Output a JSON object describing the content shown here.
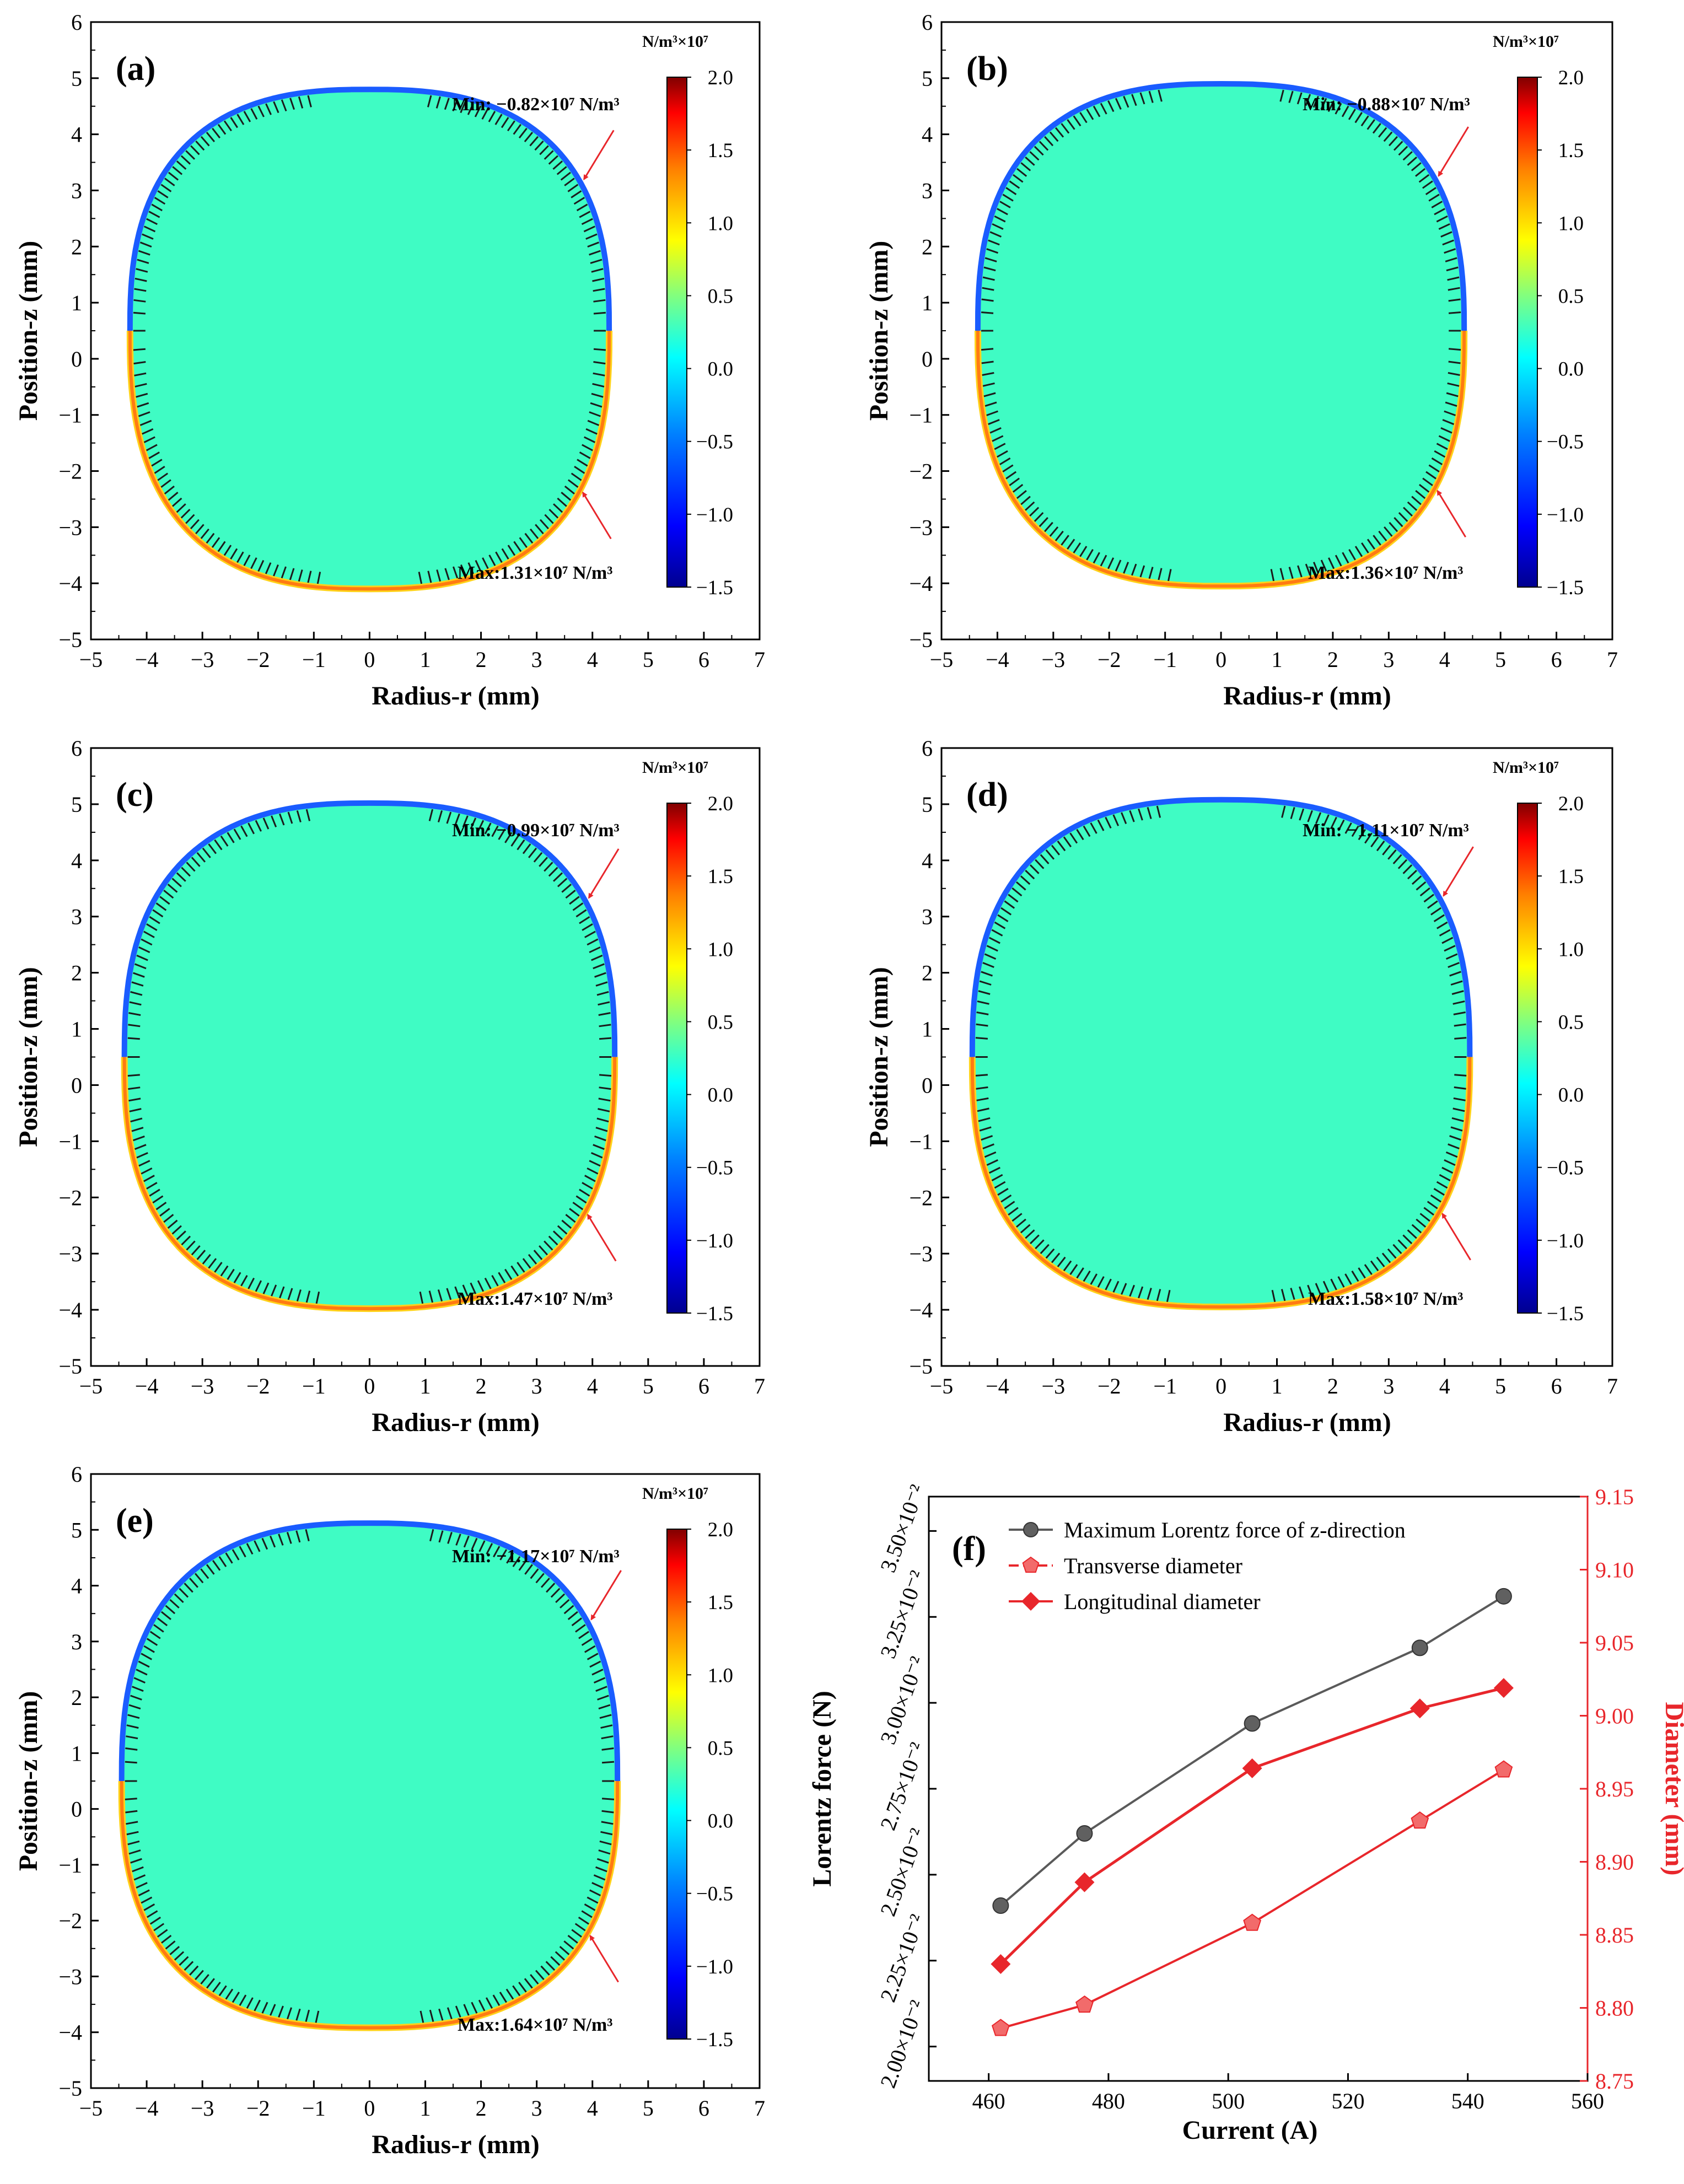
{
  "colors": {
    "fill": "#3ffcc4",
    "neg_edge": "#1a5cff",
    "pos_edge": "#ff7a12",
    "pos_edge2": "#ffd21a",
    "arrow": "#e8262b",
    "gray_series": "#5a5a5a",
    "red_series": "#e8262b",
    "red_axis": "#e8262b"
  },
  "chart_data": [
    {
      "type": "heatmap",
      "panel": "(a)",
      "xlabel": "Radius-r (mm)",
      "ylabel": "Position-z (mm)",
      "xlim": [
        -5,
        7
      ],
      "ylim": [
        -5,
        6
      ],
      "xticks": [
        "−5",
        "−4",
        "−3",
        "−2",
        "−1",
        "0",
        "1",
        "2",
        "3",
        "4",
        "5",
        "6",
        "7"
      ],
      "yticks": [
        "−5",
        "−4",
        "−3",
        "−2",
        "−1",
        "0",
        "1",
        "2",
        "3",
        "4",
        "5",
        "6"
      ],
      "droplet": {
        "top": 4.8,
        "bottom": -4.1,
        "half_width": 4.3,
        "widest_z": 0.5
      },
      "min_label": "Min: −0.82×10⁷ N/m³",
      "max_label": "Max:1.31×10⁷ N/m³",
      "colorbar": {
        "title": "N/m³×10⁷",
        "range": [
          -1.5,
          2.0
        ],
        "ticks": [
          "2.0",
          "1.5",
          "1.0",
          "0.5",
          "0.0",
          "−0.5",
          "−1.0",
          "−1.5"
        ]
      }
    },
    {
      "type": "heatmap",
      "panel": "(b)",
      "xlabel": "Radius-r (mm)",
      "ylabel": "Position-z (mm)",
      "xlim": [
        -5,
        7
      ],
      "ylim": [
        -5,
        6
      ],
      "xticks": [
        "−5",
        "−4",
        "−3",
        "−2",
        "−1",
        "0",
        "1",
        "2",
        "3",
        "4",
        "5",
        "6",
        "7"
      ],
      "yticks": [
        "−5",
        "−4",
        "−3",
        "−2",
        "−1",
        "0",
        "1",
        "2",
        "3",
        "4",
        "5",
        "6"
      ],
      "droplet": {
        "top": 4.9,
        "bottom": -4.05,
        "half_width": 4.35,
        "widest_z": 0.5
      },
      "min_label": "Min: −0.88×10⁷ N/m³",
      "max_label": "Max:1.36×10⁷ N/m³",
      "colorbar": {
        "title": "N/m³×10⁷",
        "range": [
          -1.5,
          2.0
        ],
        "ticks": [
          "2.0",
          "1.5",
          "1.0",
          "0.5",
          "0.0",
          "−0.5",
          "−1.0",
          "−1.5"
        ]
      }
    },
    {
      "type": "heatmap",
      "panel": "(c)",
      "xlabel": "Radius-r (mm)",
      "ylabel": "Position-z (mm)",
      "xlim": [
        -5,
        7
      ],
      "ylim": [
        -5,
        6
      ],
      "xticks": [
        "−5",
        "−4",
        "−3",
        "−2",
        "−1",
        "0",
        "1",
        "2",
        "3",
        "4",
        "5",
        "6",
        "7"
      ],
      "yticks": [
        "−5",
        "−4",
        "−3",
        "−2",
        "−1",
        "0",
        "1",
        "2",
        "3",
        "4",
        "5",
        "6"
      ],
      "droplet": {
        "top": 5.02,
        "bottom": -3.98,
        "half_width": 4.4,
        "widest_z": 0.5
      },
      "min_label": "Min: −0.99×10⁷ N/m³",
      "max_label": "Max:1.47×10⁷ N/m³",
      "colorbar": {
        "title": "N/m³×10⁷",
        "range": [
          -1.5,
          2.0
        ],
        "ticks": [
          "2.0",
          "1.5",
          "1.0",
          "0.5",
          "0.0",
          "−0.5",
          "−1.0",
          "−1.5"
        ]
      }
    },
    {
      "type": "heatmap",
      "panel": "(d)",
      "xlabel": "Radius-r (mm)",
      "ylabel": "Position-z (mm)",
      "xlim": [
        -5,
        7
      ],
      "ylim": [
        -5,
        6
      ],
      "xticks": [
        "−5",
        "−4",
        "−3",
        "−2",
        "−1",
        "0",
        "1",
        "2",
        "3",
        "4",
        "5",
        "6",
        "7"
      ],
      "yticks": [
        "−5",
        "−4",
        "−3",
        "−2",
        "−1",
        "0",
        "1",
        "2",
        "3",
        "4",
        "5",
        "6"
      ],
      "droplet": {
        "top": 5.08,
        "bottom": -3.95,
        "half_width": 4.45,
        "widest_z": 0.5
      },
      "min_label": "Min: −1.11×10⁷ N/m³",
      "max_label": "Max:1.58×10⁷ N/m³",
      "colorbar": {
        "title": "N/m³×10⁷",
        "range": [
          -1.5,
          2.0
        ],
        "ticks": [
          "2.0",
          "1.5",
          "1.0",
          "0.5",
          "0.0",
          "−0.5",
          "−1.0",
          "−1.5"
        ]
      }
    },
    {
      "type": "heatmap",
      "panel": "(e)",
      "xlabel": "Radius-r (mm)",
      "ylabel": "Position-z (mm)",
      "xlim": [
        -5,
        7
      ],
      "ylim": [
        -5,
        6
      ],
      "xticks": [
        "−5",
        "−4",
        "−3",
        "−2",
        "−1",
        "0",
        "1",
        "2",
        "3",
        "4",
        "5",
        "6",
        "7"
      ],
      "yticks": [
        "−5",
        "−4",
        "−3",
        "−2",
        "−1",
        "0",
        "1",
        "2",
        "3",
        "4",
        "5",
        "6"
      ],
      "droplet": {
        "top": 5.12,
        "bottom": -3.92,
        "half_width": 4.45,
        "widest_z": 0.5
      },
      "min_label": "Min: −1.17×10⁷ N/m³",
      "max_label": "Max:1.64×10⁷ N/m³",
      "colorbar": {
        "title": "N/m³×10⁷",
        "range": [
          -1.5,
          2.0
        ],
        "ticks": [
          "2.0",
          "1.5",
          "1.0",
          "0.5",
          "0.0",
          "−0.5",
          "−1.0",
          "−1.5"
        ]
      }
    },
    {
      "type": "line",
      "panel": "(f)",
      "xlabel": "Current (A)",
      "ylabel": "Lorentz force (N)",
      "y2label": "Diameter (mm)",
      "xlim": [
        450,
        560
      ],
      "ylim": [
        0.019,
        0.036
      ],
      "y2lim": [
        8.75,
        9.15
      ],
      "xticks": [
        "460",
        "480",
        "500",
        "520",
        "540",
        "560"
      ],
      "yticks": [
        "2.00×10⁻²",
        "2.25×10⁻²",
        "2.50×10⁻²",
        "2.75×10⁻²",
        "3.00×10⁻²",
        "3.25×10⁻²",
        "3.50×10⁻²"
      ],
      "y2ticks": [
        "8.75",
        "8.80",
        "8.85",
        "8.90",
        "8.95",
        "9.00",
        "9.05",
        "9.10",
        "9.15"
      ],
      "x": [
        462,
        476,
        504,
        532,
        546
      ],
      "series": [
        {
          "name": "Maximum Lorentz force of z-direction",
          "axis": "left",
          "values": [
            0.0241,
            0.0262,
            0.0294,
            0.0316,
            0.0331
          ]
        },
        {
          "name": "Transverse  diameter",
          "axis": "right",
          "values": [
            8.786,
            8.802,
            8.858,
            8.928,
            8.963
          ]
        },
        {
          "name": "Longitudinal diameter",
          "axis": "right",
          "values": [
            8.83,
            8.886,
            8.964,
            9.005,
            9.019
          ]
        }
      ]
    }
  ]
}
